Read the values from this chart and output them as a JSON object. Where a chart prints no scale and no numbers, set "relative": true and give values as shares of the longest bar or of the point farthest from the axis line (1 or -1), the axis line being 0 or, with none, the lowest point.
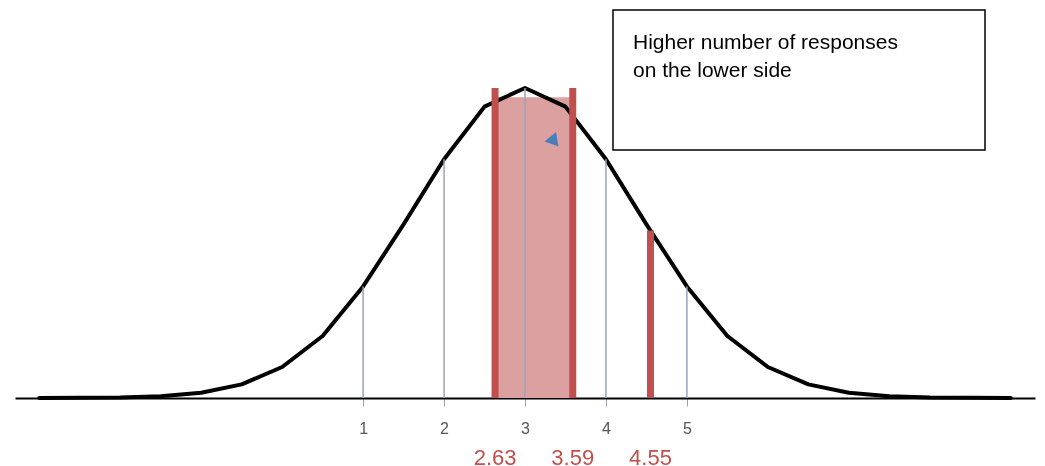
{
  "chart_data": {
    "type": "line",
    "relative": true,
    "x": [
      -3,
      -2,
      -1.5,
      -1,
      -0.5,
      0,
      0.5,
      1,
      1.5,
      2,
      2.5,
      3,
      3.5,
      4,
      4.5,
      5,
      5.5,
      6,
      6.5,
      7,
      7.5,
      8,
      9
    ],
    "series": [
      {
        "color": "#000000",
        "values": [
          0,
          0.002,
          0.006,
          0.017,
          0.044,
          0.1,
          0.2,
          0.36,
          0.56,
          0.77,
          0.94,
          1,
          0.94,
          0.77,
          0.56,
          0.36,
          0.2,
          0.1,
          0.044,
          0.017,
          0.006,
          0.002,
          0
        ]
      }
    ],
    "xlim": [
      -3.3,
      9.3
    ],
    "xticks": [
      1,
      2,
      3,
      4,
      5
    ],
    "marker": "none",
    "ref_lines": [
      {
        "axis": "x",
        "value": 1,
        "color": "#9aa4b8"
      },
      {
        "axis": "x",
        "value": 2,
        "color": "#9aa4b8"
      },
      {
        "axis": "x",
        "value": 3,
        "color": "#9aa4b8"
      },
      {
        "axis": "x",
        "value": 4,
        "color": "#9aa4b8"
      },
      {
        "axis": "x",
        "value": 5,
        "color": "#9aa4b8"
      },
      {
        "axis": "x",
        "value": 2.63,
        "label": "2.63",
        "color": "#c0504d"
      },
      {
        "axis": "x",
        "value": 3.59,
        "label": "3.59",
        "color": "#c0504d"
      },
      {
        "axis": "x",
        "value": 4.55,
        "label": "4.55",
        "color": "#c0504d"
      }
    ],
    "bands": [
      {
        "axis": "x",
        "from": 2.63,
        "to": 3.59,
        "color": "#dca0a0"
      }
    ],
    "annotations": [
      "Higher number of responses on the lower side"
    ]
  }
}
